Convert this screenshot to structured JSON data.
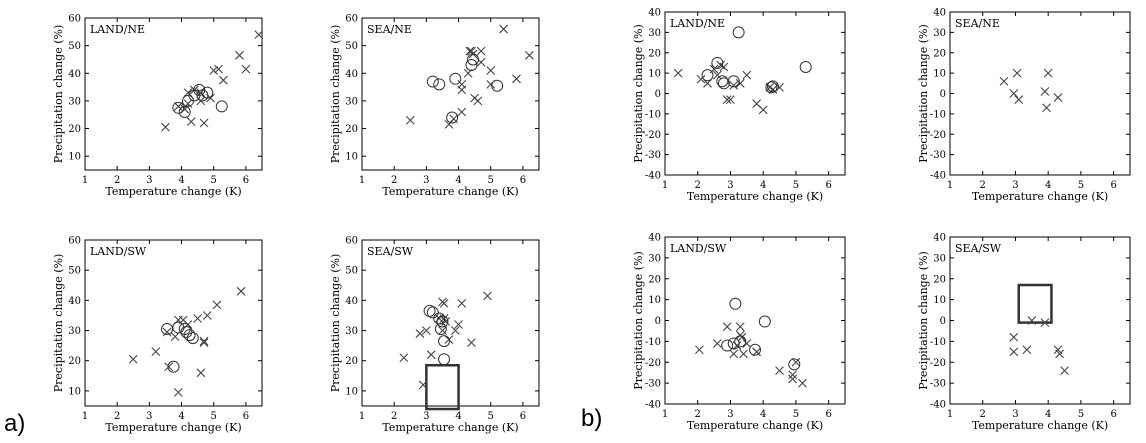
{
  "figure": {
    "part_labels": [
      "a)",
      "b)"
    ]
  },
  "chart_data": [
    {
      "type": "scatter",
      "group": "a)",
      "title": "LAND/NE",
      "xlabel": "Temperature change (K)",
      "ylabel": "Precipitation change (%)",
      "xlim": [
        1,
        6.5
      ],
      "ylim": [
        5,
        60
      ],
      "xticks": [
        1,
        2,
        3,
        4,
        5,
        6
      ],
      "yticks": [
        10,
        20,
        30,
        40,
        50,
        60
      ],
      "grid": false,
      "series": [
        {
          "marker": "x",
          "points": [
            [
              3.5,
              20.5
            ],
            [
              3.9,
              28
            ],
            [
              4.1,
              27
            ],
            [
              4.2,
              29
            ],
            [
              4.3,
              22.5
            ],
            [
              4.2,
              33
            ],
            [
              4.4,
              34
            ],
            [
              4.6,
              33
            ],
            [
              4.7,
              22
            ],
            [
              4.6,
              30
            ],
            [
              4.9,
              31
            ],
            [
              5,
              41
            ],
            [
              5.15,
              41.5
            ],
            [
              5.3,
              37.5
            ],
            [
              5.8,
              46.5
            ],
            [
              6.0,
              41.5
            ],
            [
              6.4,
              54
            ]
          ]
        },
        {
          "marker": "o",
          "points": [
            [
              3.9,
              27.5
            ],
            [
              4.1,
              26
            ],
            [
              4.2,
              30
            ],
            [
              4.4,
              32
            ],
            [
              4.55,
              34
            ],
            [
              4.65,
              32
            ],
            [
              4.8,
              33
            ],
            [
              5.25,
              28
            ]
          ]
        }
      ]
    },
    {
      "type": "scatter",
      "group": "a)",
      "title": "SEA/NE",
      "xlabel": "Temperature change (K)",
      "ylabel": "Precipitation change (%)",
      "xlim": [
        1,
        6.5
      ],
      "ylim": [
        5,
        60
      ],
      "xticks": [
        1,
        2,
        3,
        4,
        5,
        6
      ],
      "yticks": [
        10,
        20,
        30,
        40,
        50,
        60
      ],
      "grid": false,
      "series": [
        {
          "marker": "x",
          "points": [
            [
              2.5,
              23
            ],
            [
              3.7,
              21.5
            ],
            [
              3.85,
              23.5
            ],
            [
              4.1,
              26
            ],
            [
              4.1,
              34
            ],
            [
              4.1,
              36
            ],
            [
              4.35,
              48
            ],
            [
              4.4,
              48
            ],
            [
              4.45,
              47
            ],
            [
              4.7,
              48
            ],
            [
              4.6,
              30
            ],
            [
              4.7,
              44
            ],
            [
              4.5,
              31
            ],
            [
              5,
              41
            ],
            [
              5,
              36
            ],
            [
              5.4,
              56
            ],
            [
              5.8,
              38
            ],
            [
              6.2,
              46.5
            ],
            [
              4.3,
              40
            ]
          ]
        },
        {
          "marker": "o",
          "points": [
            [
              3.2,
              37
            ],
            [
              3.4,
              36
            ],
            [
              3.8,
              24
            ],
            [
              3.9,
              38
            ],
            [
              4.4,
              43
            ],
            [
              4.45,
              45
            ],
            [
              5.2,
              35.5
            ]
          ]
        }
      ]
    },
    {
      "type": "scatter",
      "group": "a)",
      "title": "LAND/SW",
      "xlabel": "Temperature change (K)",
      "ylabel": "Precipitation change (%)",
      "xlim": [
        1,
        6.5
      ],
      "ylim": [
        5,
        60
      ],
      "xticks": [
        1,
        2,
        3,
        4,
        5,
        6
      ],
      "yticks": [
        10,
        20,
        30,
        40,
        50,
        60
      ],
      "grid": false,
      "series": [
        {
          "marker": "x",
          "points": [
            [
              2.5,
              20.5
            ],
            [
              3.2,
              23
            ],
            [
              3.55,
              29.5
            ],
            [
              3.6,
              18
            ],
            [
              3.9,
              33.5
            ],
            [
              4.05,
              33.5
            ],
            [
              4.2,
              32
            ],
            [
              3.8,
              28
            ],
            [
              3.9,
              9.5
            ],
            [
              4.5,
              34
            ],
            [
              4.6,
              16
            ],
            [
              4.7,
              26
            ],
            [
              4.7,
              26.5
            ],
            [
              4.8,
              35
            ],
            [
              5.1,
              38.5
            ],
            [
              5.85,
              43
            ]
          ]
        },
        {
          "marker": "o",
          "points": [
            [
              3.55,
              30.5
            ],
            [
              3.75,
              18
            ],
            [
              3.9,
              31
            ],
            [
              4.15,
              29.5
            ],
            [
              4.25,
              28.5
            ],
            [
              4.35,
              27.5
            ],
            [
              4.1,
              30.5
            ]
          ]
        }
      ]
    },
    {
      "type": "scatter",
      "group": "a)",
      "title": "SEA/SW",
      "xlabel": "Temperature change (K)",
      "ylabel": "Precipitation change (%)",
      "xlim": [
        1,
        6.5
      ],
      "ylim": [
        5,
        60
      ],
      "xticks": [
        1,
        2,
        3,
        4,
        5,
        6
      ],
      "yticks": [
        10,
        20,
        30,
        40,
        50,
        60
      ],
      "grid": false,
      "box": {
        "x0": 3,
        "x1": 4,
        "y0": 4,
        "y1": 18.5
      },
      "series": [
        {
          "marker": "x",
          "points": [
            [
              2.3,
              21
            ],
            [
              2.8,
              29
            ],
            [
              3.0,
              30
            ],
            [
              2.9,
              12
            ],
            [
              3.15,
              22
            ],
            [
              3.4,
              34
            ],
            [
              3.5,
              39.5
            ],
            [
              3.55,
              39
            ],
            [
              3.55,
              34
            ],
            [
              3.6,
              33
            ],
            [
              3.9,
              30
            ],
            [
              4.0,
              32
            ],
            [
              4.1,
              39
            ],
            [
              4.4,
              26
            ],
            [
              4.9,
              41.5
            ],
            [
              3.5,
              30
            ],
            [
              3.7,
              27
            ]
          ]
        },
        {
          "marker": "o",
          "points": [
            [
              3.1,
              36.5
            ],
            [
              3.2,
              36
            ],
            [
              3.4,
              34
            ],
            [
              3.5,
              33
            ],
            [
              3.45,
              30.5
            ],
            [
              3.55,
              26.5
            ],
            [
              3.55,
              20.5
            ]
          ]
        }
      ]
    },
    {
      "type": "scatter",
      "group": "b)",
      "title": "LAND/NE",
      "xlabel": "Temperature change (K)",
      "ylabel": "Precipitation change (%)",
      "xlim": [
        1,
        6.5
      ],
      "ylim": [
        -40,
        40
      ],
      "xticks": [
        1,
        2,
        3,
        4,
        5,
        6
      ],
      "yticks": [
        -40,
        -30,
        -20,
        -10,
        0,
        10,
        20,
        30,
        40
      ],
      "grid": false,
      "series": [
        {
          "marker": "x",
          "points": [
            [
              1.4,
              10
            ],
            [
              2.1,
              7
            ],
            [
              2.3,
              5
            ],
            [
              2.6,
              9
            ],
            [
              2.7,
              14
            ],
            [
              2.8,
              13
            ],
            [
              2.9,
              -3
            ],
            [
              3.0,
              -3
            ],
            [
              3.1,
              4
            ],
            [
              3.3,
              5
            ],
            [
              3.5,
              9
            ],
            [
              3.8,
              -5
            ],
            [
              4.0,
              -8
            ],
            [
              4.2,
              3
            ],
            [
              4.3,
              2
            ],
            [
              4.5,
              3
            ],
            [
              2.5,
              12
            ]
          ]
        },
        {
          "marker": "o",
          "points": [
            [
              2.3,
              9
            ],
            [
              2.6,
              15
            ],
            [
              2.75,
              6
            ],
            [
              2.8,
              5
            ],
            [
              3.1,
              6
            ],
            [
              3.25,
              30
            ],
            [
              4.25,
              3
            ],
            [
              4.3,
              3.5
            ],
            [
              5.3,
              13
            ]
          ]
        }
      ]
    },
    {
      "type": "scatter",
      "group": "b)",
      "title": "SEA/NE",
      "xlabel": "Temperature change (K)",
      "ylabel": "Precipitation change (%)",
      "xlim": [
        1,
        6.5
      ],
      "ylim": [
        -40,
        40
      ],
      "xticks": [
        1,
        2,
        3,
        4,
        5,
        6
      ],
      "yticks": [
        -40,
        -30,
        -20,
        -10,
        0,
        10,
        20,
        30,
        40
      ],
      "grid": false,
      "series": [
        {
          "marker": "x",
          "points": [
            [
              2.65,
              6
            ],
            [
              2.95,
              0
            ],
            [
              3.05,
              10
            ],
            [
              3.1,
              -3
            ],
            [
              3.9,
              1
            ],
            [
              3.95,
              -7
            ],
            [
              4.0,
              10
            ],
            [
              4.3,
              -2
            ]
          ]
        },
        {
          "marker": "o",
          "points": []
        }
      ]
    },
    {
      "type": "scatter",
      "group": "b)",
      "title": "LAND/SW",
      "xlabel": "Temperature change (K)",
      "ylabel": "Precipitation change (%)",
      "xlim": [
        1,
        6.5
      ],
      "ylim": [
        -40,
        40
      ],
      "xticks": [
        1,
        2,
        3,
        4,
        5,
        6
      ],
      "yticks": [
        -40,
        -30,
        -20,
        -10,
        0,
        10,
        20,
        30,
        40
      ],
      "grid": false,
      "series": [
        {
          "marker": "x",
          "points": [
            [
              2.05,
              -14
            ],
            [
              2.6,
              -11
            ],
            [
              2.9,
              -3
            ],
            [
              3.1,
              -16
            ],
            [
              3.2,
              -12
            ],
            [
              3.3,
              -3
            ],
            [
              3.3,
              -7
            ],
            [
              3.35,
              -8
            ],
            [
              3.4,
              -16
            ],
            [
              3.5,
              -11
            ],
            [
              3.8,
              -15
            ],
            [
              4.5,
              -24
            ],
            [
              4.9,
              -26
            ],
            [
              4.9,
              -28
            ],
            [
              5.0,
              -20
            ],
            [
              5.2,
              -30
            ]
          ]
        },
        {
          "marker": "o",
          "points": [
            [
              2.9,
              -12
            ],
            [
              3.1,
              -11
            ],
            [
              3.15,
              8
            ],
            [
              3.3,
              -10
            ],
            [
              3.75,
              -14
            ],
            [
              4.05,
              -0.5
            ],
            [
              4.95,
              -21
            ]
          ]
        }
      ]
    },
    {
      "type": "scatter",
      "group": "b)",
      "title": "SEA/SW",
      "xlabel": "Temperature change (K)",
      "ylabel": "Precipitation change (%)",
      "xlim": [
        1,
        6.5
      ],
      "ylim": [
        -40,
        40
      ],
      "xticks": [
        1,
        2,
        3,
        4,
        5,
        6
      ],
      "yticks": [
        -40,
        -30,
        -20,
        -10,
        0,
        10,
        20,
        30,
        40
      ],
      "grid": false,
      "box": {
        "x0": 3.1,
        "x1": 4.1,
        "y0": -1,
        "y1": 17
      },
      "series": [
        {
          "marker": "x",
          "points": [
            [
              2.95,
              -8
            ],
            [
              2.95,
              -15
            ],
            [
              3.35,
              -14
            ],
            [
              3.5,
              0
            ],
            [
              3.9,
              -1
            ],
            [
              4.3,
              -14
            ],
            [
              4.35,
              -16
            ],
            [
              4.5,
              -24
            ]
          ]
        },
        {
          "marker": "o",
          "points": []
        }
      ]
    }
  ]
}
